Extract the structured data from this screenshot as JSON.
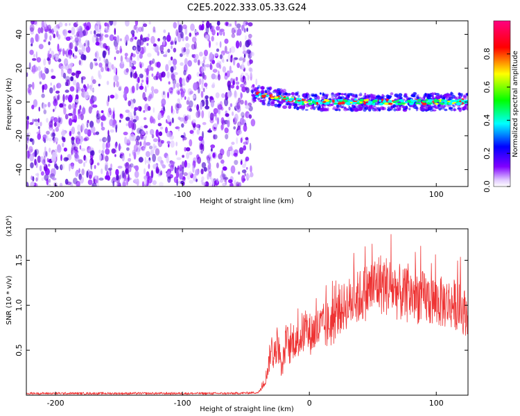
{
  "title": "C2E5.2022.333.05.33.G24",
  "colors": {
    "spectrum_low": "#8000ff",
    "snr_line": "#ee3333"
  },
  "chart_data": [
    {
      "type": "heatmap",
      "xlabel": "Height of straight line (km)",
      "ylabel": "Frequency (Hz)",
      "xlim": [
        -223,
        125
      ],
      "ylim": [
        -50,
        48
      ],
      "xticks": [
        -200,
        -100,
        0,
        100
      ],
      "yticks": [
        -40,
        -20,
        0,
        20,
        40
      ],
      "grid": false,
      "noise_region_x": [
        -223,
        -45
      ],
      "signal_track": {
        "x_start": -45,
        "x_end": 125,
        "frequency_hz_start": 5,
        "frequency_hz_end": 0
      },
      "colorbar": {
        "label": "Normalized spectral amplitude",
        "range": [
          0.0,
          1.0
        ],
        "ticks": [
          "0.0",
          "0.2",
          "0.4",
          "0.6",
          "0.8"
        ],
        "colormap": [
          "#ffffff",
          "#8000ff",
          "#0000ff",
          "#00ffff",
          "#00ff00",
          "#ffff00",
          "#ff0000",
          "#ff0080"
        ]
      }
    },
    {
      "type": "line",
      "xlabel": "Height of straight line (km)",
      "ylabel": "SNR (10 * v/v)",
      "y_scale_label": "(x10⁴)",
      "xlim": [
        -223,
        125
      ],
      "ylim": [
        0,
        18500
      ],
      "xticks": [
        -200,
        -100,
        0,
        100
      ],
      "yticks": [
        5000,
        10000,
        15000
      ],
      "ytick_labels": [
        "0.5",
        "1.0",
        "1.5"
      ],
      "grid": false,
      "series": [
        {
          "x": [
            -223,
            -200,
            -150,
            -100,
            -60,
            -40,
            -35,
            -32,
            -30,
            -28,
            -25,
            -22,
            -20,
            -18,
            -15,
            -12,
            -10,
            -5,
            0,
            5,
            10,
            15,
            20,
            25,
            30,
            35,
            40,
            45,
            50,
            55,
            60,
            65,
            70,
            75,
            80,
            85,
            90,
            95,
            100,
            105,
            110,
            115,
            120,
            125
          ],
          "y": [
            200,
            200,
            200,
            200,
            200,
            300,
            1500,
            3500,
            5500,
            4000,
            6000,
            2500,
            4500,
            6200,
            5000,
            6500,
            5800,
            7000,
            6800,
            7200,
            7500,
            7800,
            8500,
            9500,
            10200,
            10500,
            11000,
            11500,
            12000,
            12500,
            12200,
            12000,
            11500,
            11000,
            11200,
            11000,
            10800,
            10600,
            10400,
            10300,
            10200,
            10100,
            9500,
            9000
          ]
        }
      ]
    }
  ]
}
